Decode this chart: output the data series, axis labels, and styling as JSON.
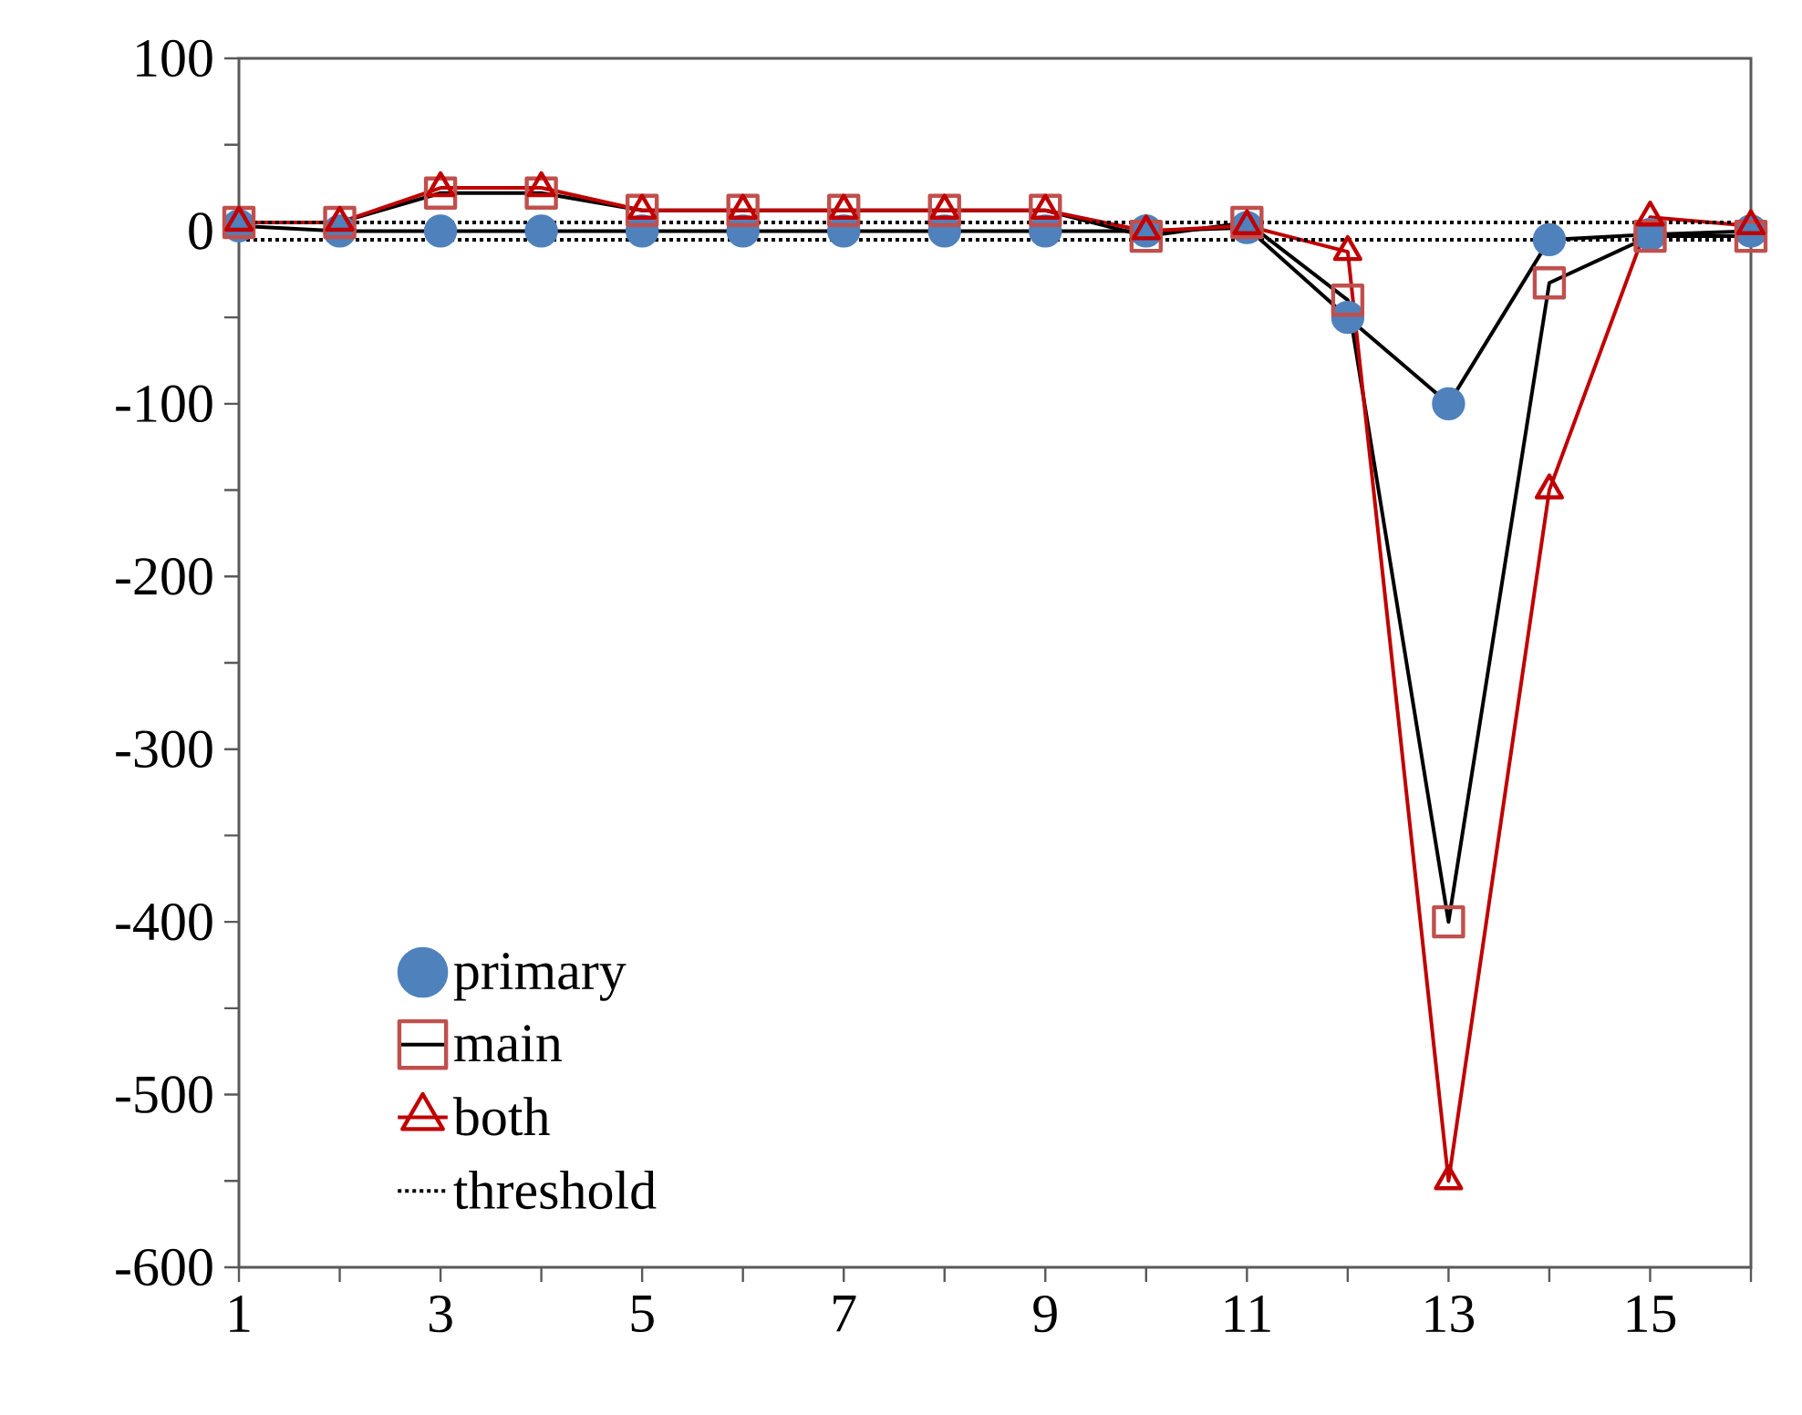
{
  "chart_data": {
    "type": "line",
    "x": [
      1,
      2,
      3,
      4,
      5,
      6,
      7,
      8,
      9,
      10,
      11,
      12,
      13,
      14,
      15,
      16
    ],
    "series": [
      {
        "name": "primary",
        "color": "#4f81bd",
        "marker": "circle",
        "values": [
          3,
          0,
          0,
          0,
          0,
          0,
          0,
          0,
          0,
          0,
          2,
          -50,
          -100,
          -5,
          -2,
          0
        ]
      },
      {
        "name": "main",
        "color": "#c0504d",
        "marker": "square",
        "values": [
          5,
          5,
          22,
          22,
          12,
          12,
          12,
          12,
          12,
          -3,
          5,
          -40,
          -400,
          -30,
          -3,
          -3
        ]
      },
      {
        "name": "both",
        "color": "#c00000",
        "marker": "triangle",
        "values": [
          5,
          5,
          25,
          25,
          12,
          12,
          12,
          12,
          12,
          0,
          3,
          -12,
          -550,
          -150,
          8,
          3
        ]
      }
    ],
    "ref_lines": [
      {
        "axis": "y",
        "value": 5,
        "label": "threshold",
        "color": "#000000",
        "line_style": "dotted"
      },
      {
        "axis": "y",
        "value": -5,
        "color": "#000000",
        "line_style": "dotted"
      }
    ],
    "xlim": [
      1,
      16
    ],
    "ylim": [
      -600,
      100
    ],
    "xticks": [
      1,
      {
        "value": 2,
        "label": null
      },
      3,
      {
        "value": 4,
        "label": null
      },
      5,
      {
        "value": 6,
        "label": null
      },
      7,
      {
        "value": 8,
        "label": null
      },
      9,
      {
        "value": 10,
        "label": null
      },
      11,
      {
        "value": 12,
        "label": null
      },
      13,
      {
        "value": 14,
        "label": null
      },
      15,
      {
        "value": 16,
        "label": null
      }
    ],
    "yticks": [
      100,
      {
        "value": 50,
        "label": null
      },
      0,
      {
        "value": -50,
        "label": null
      },
      -100,
      {
        "value": -150,
        "label": null
      },
      -200,
      {
        "value": -250,
        "label": null
      },
      -300,
      {
        "value": -350,
        "label": null
      },
      -400,
      {
        "value": -450,
        "label": null
      },
      -500,
      {
        "value": -550,
        "label": null
      },
      -600
    ],
    "legend": "bottom left",
    "grid": false,
    "line_style": "solid"
  }
}
